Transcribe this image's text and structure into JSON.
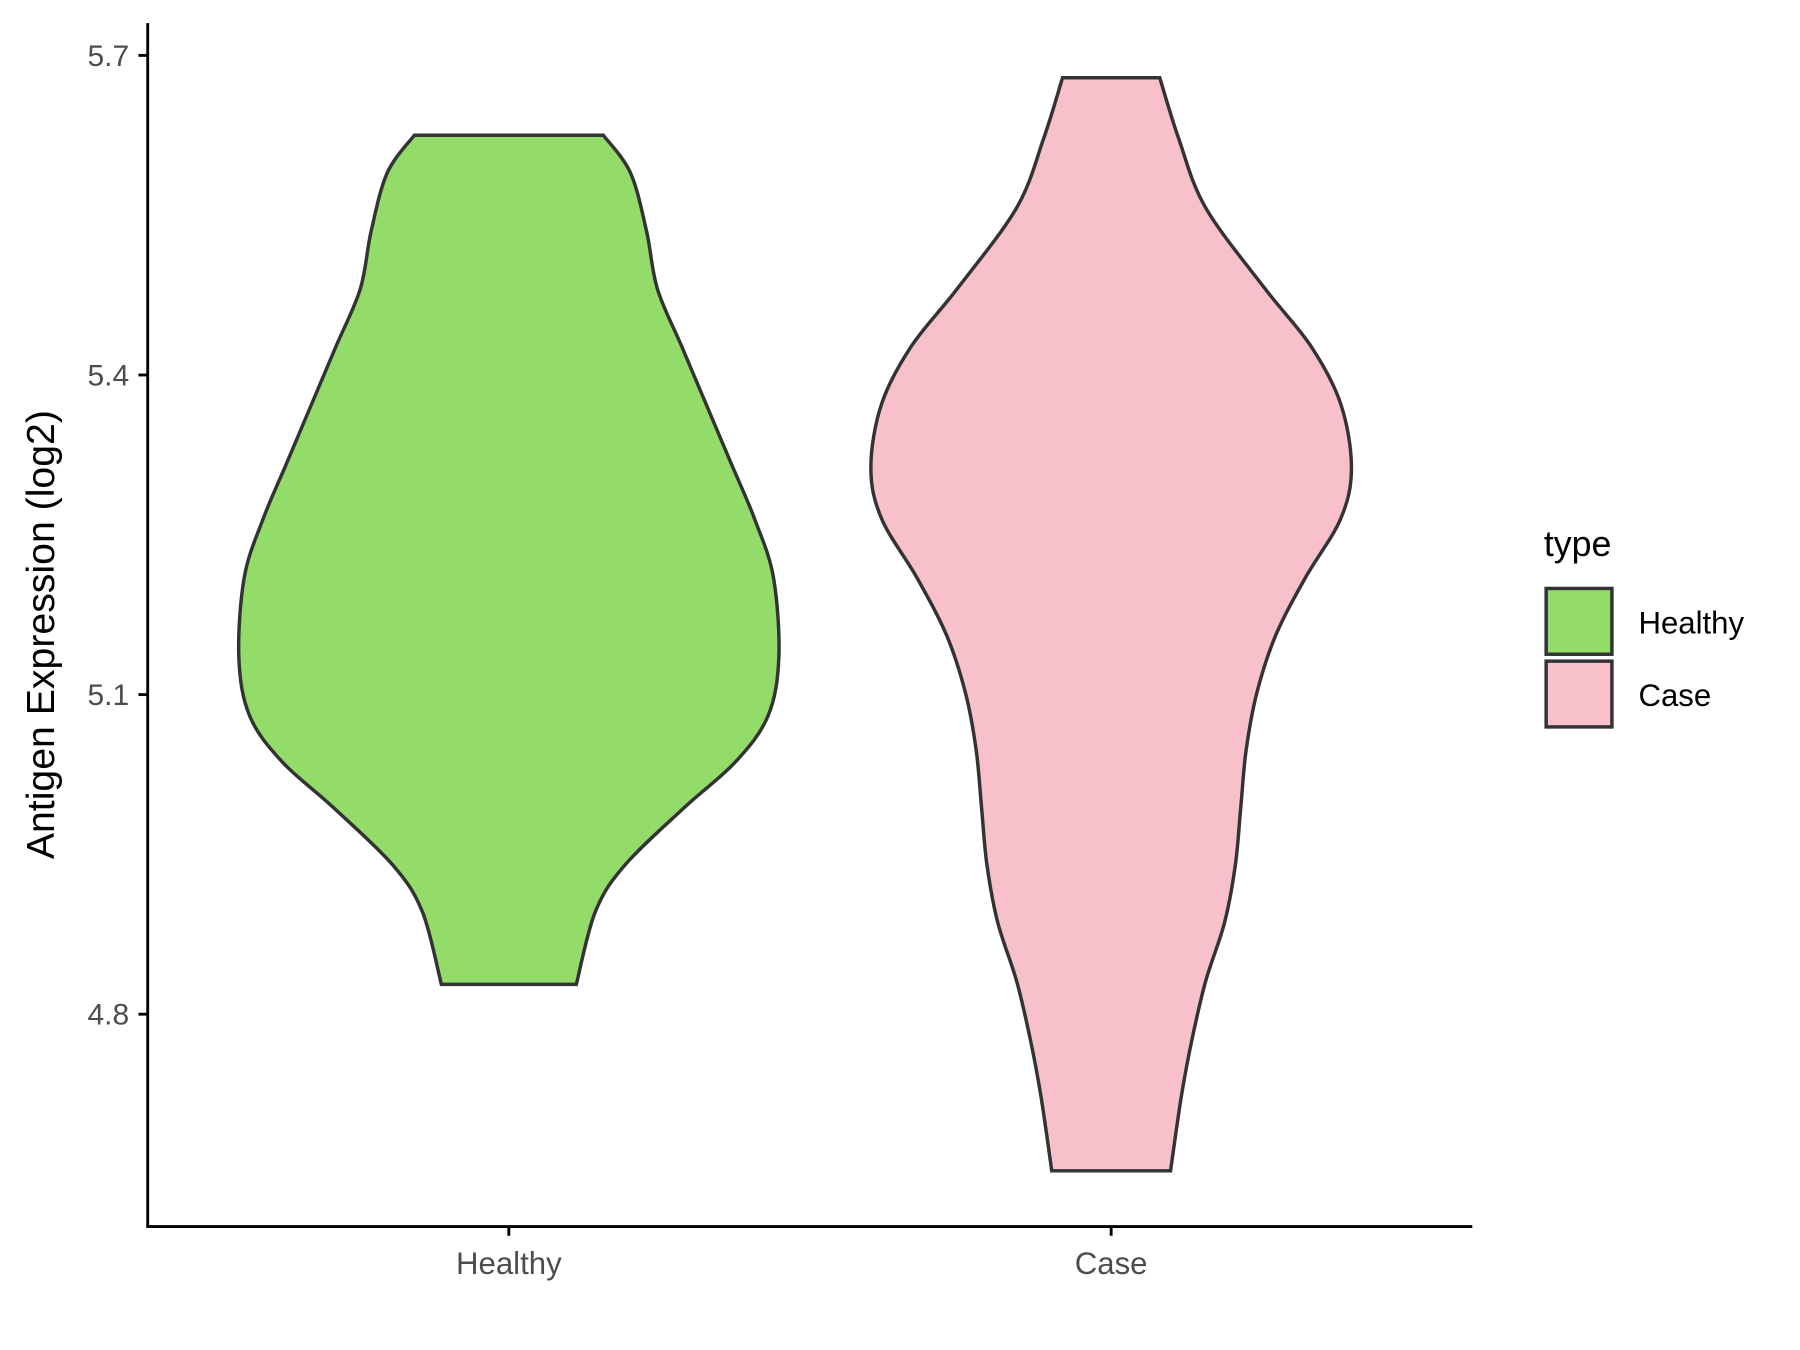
{
  "chart_data": {
    "type": "violin",
    "ylabel": "Antigen Expression (log2)",
    "xlabel": "",
    "categories": [
      "Healthy",
      "Case"
    ],
    "ylim": [
      4.601,
      5.73
    ],
    "yticks": [
      "5.7",
      "5.4",
      "5.1",
      "4.8"
    ],
    "grid": false,
    "legend": {
      "title": "type",
      "position": "right",
      "entries": [
        "Healthy",
        "Case"
      ]
    },
    "colors": {
      "Healthy": "#93DC6A",
      "Case": "#F7C0CB",
      "outline": "#333333"
    },
    "series": [
      {
        "name": "Healthy",
        "profile_value_relwidth": [
          [
            5.625,
            0.35
          ],
          [
            5.59,
            0.45
          ],
          [
            5.535,
            0.51
          ],
          [
            5.481,
            0.55
          ],
          [
            5.427,
            0.64
          ],
          [
            5.373,
            0.73
          ],
          [
            5.319,
            0.82
          ],
          [
            5.265,
            0.91
          ],
          [
            5.21,
            0.98
          ],
          [
            5.135,
            1.0
          ],
          [
            5.08,
            0.96
          ],
          [
            5.037,
            0.84
          ],
          [
            4.994,
            0.65
          ],
          [
            4.94,
            0.43
          ],
          [
            4.896,
            0.32
          ],
          [
            4.828,
            0.25
          ]
        ]
      },
      {
        "name": "Case",
        "profile_value_relwidth": [
          [
            5.679,
            0.18
          ],
          [
            5.622,
            0.25
          ],
          [
            5.557,
            0.35
          ],
          [
            5.481,
            0.57
          ],
          [
            5.427,
            0.74
          ],
          [
            5.373,
            0.85
          ],
          [
            5.313,
            0.89
          ],
          [
            5.265,
            0.85
          ],
          [
            5.21,
            0.72
          ],
          [
            5.156,
            0.61
          ],
          [
            5.102,
            0.54
          ],
          [
            5.048,
            0.5
          ],
          [
            4.994,
            0.48
          ],
          [
            4.94,
            0.46
          ],
          [
            4.886,
            0.42
          ],
          [
            4.831,
            0.35
          ],
          [
            4.777,
            0.3
          ],
          [
            4.723,
            0.26
          ],
          [
            4.653,
            0.22
          ]
        ]
      }
    ]
  }
}
